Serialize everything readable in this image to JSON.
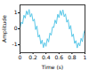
{
  "chart_data": {
    "type": "line",
    "x_label": "Time (s)",
    "y_label": "Amplitude",
    "x": [
      0,
      0.02,
      0.04,
      0.06,
      0.08,
      0.1,
      0.12,
      0.14,
      0.16,
      0.18,
      0.2,
      0.22,
      0.24,
      0.26,
      0.28,
      0.3,
      0.32,
      0.34,
      0.36,
      0.38,
      0.4,
      0.42,
      0.44,
      0.46,
      0.48,
      0.5,
      0.52,
      0.54,
      0.56,
      0.58,
      0.6,
      0.62,
      0.64,
      0.66,
      0.68,
      0.7,
      0.72,
      0.74,
      0.76,
      0.78,
      0.8,
      0.82,
      0.84,
      0.86,
      0.88,
      0.9,
      0.92,
      0.94,
      0.96,
      0.98,
      1
    ],
    "values": [
      0.05,
      0.42,
      0.31,
      0.85,
      0.67,
      1.12,
      0.88,
      1.21,
      0.74,
      0.95,
      0.48,
      0.61,
      -0.05,
      0.18,
      -0.52,
      -0.38,
      -0.95,
      -0.71,
      -1.18,
      -0.86,
      -1.1,
      -0.62,
      -0.83,
      -0.27,
      -0.41,
      0.12,
      0.08,
      0.55,
      0.32,
      0.91,
      0.7,
      1.15,
      0.84,
      1.19,
      0.76,
      0.93,
      0.41,
      0.58,
      -0.02,
      0.21,
      -0.49,
      -0.33,
      -0.92,
      -0.74,
      -1.2,
      -0.88,
      -1.08,
      -0.6,
      -0.81,
      -0.3,
      -0.06
    ],
    "color": "#5bc8e8",
    "xlim": [
      0,
      1
    ],
    "xticks": [
      0,
      0.2,
      0.4,
      0.6,
      0.8,
      1
    ],
    "ylim": [
      -1.5,
      1.5
    ],
    "yticks": [
      -1,
      0,
      1
    ],
    "grid": false
  }
}
